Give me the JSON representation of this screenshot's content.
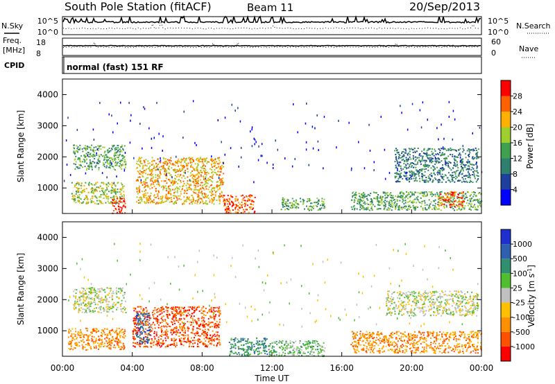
{
  "header": {
    "title": "South Pole Station (fitACF)",
    "beam": "Beam 11",
    "date": "20/Sep/2013"
  },
  "aux_panels": {
    "nsky_label": "N.Sky",
    "nsky_tick_top": "10^5",
    "nsky_tick_bottom": "10^0",
    "nsearch_label": "N.Search",
    "nsearch_tick_top": "10^5",
    "nsearch_tick_bottom": "10^0",
    "freq_label_1": "Freq.",
    "freq_label_2": "[MHz]",
    "freq_tick_top": "18",
    "freq_tick_bottom": "8",
    "nave_label": "Nave",
    "nave_tick_top": "60",
    "nave_tick_bottom": "0",
    "cpid_label": "CPID",
    "cpid_text": "normal (fast) 151 RF"
  },
  "x_axis": {
    "label": "Time UT",
    "ticks": [
      "00:00",
      "04:00",
      "08:00",
      "12:00",
      "16:00",
      "20:00",
      "00:00"
    ]
  },
  "colors": {
    "power": [
      "#0000ff",
      "#1f3f9f",
      "#2f7f6f",
      "#3fa04f",
      "#9fcf2f",
      "#ffb000",
      "#ff6000",
      "#ff0000"
    ],
    "velocity": [
      "#ff0000",
      "#ff5000",
      "#ff9000",
      "#ffc000",
      "#c0c0c0",
      "#4fbf2f",
      "#2f8f6f",
      "#2f5faf",
      "#1f2fcf"
    ]
  },
  "chart_data": [
    {
      "type": "heatmap",
      "title": "Power",
      "xlabel": "Time UT",
      "ylabel": "Slant Range [km]",
      "xlim": [
        "00:00",
        "24:00"
      ],
      "ylim": [
        180,
        4500
      ],
      "yticks": [
        1000,
        2000,
        3000,
        4000
      ],
      "colorbar": {
        "label": "Power [dB]",
        "range": [
          0,
          32
        ],
        "ticks": [
          4,
          8,
          12,
          16,
          20,
          24,
          28
        ]
      },
      "echo_regions": [
        {
          "t0": 0.6,
          "t1": 3.6,
          "r0": 1600,
          "r1": 2400,
          "level": 10
        },
        {
          "t0": 0.5,
          "t1": 3.5,
          "r0": 500,
          "r1": 1200,
          "level": 14
        },
        {
          "t0": 2.8,
          "t1": 3.6,
          "r0": 200,
          "r1": 700,
          "level": 26
        },
        {
          "t0": 4.2,
          "t1": 9.2,
          "r0": 500,
          "r1": 2000,
          "level": 18
        },
        {
          "t0": 9.2,
          "t1": 11.0,
          "r0": 200,
          "r1": 800,
          "level": 24
        },
        {
          "t0": 12.5,
          "t1": 15.0,
          "r0": 300,
          "r1": 700,
          "level": 12
        },
        {
          "t0": 16.5,
          "t1": 24.0,
          "r0": 300,
          "r1": 900,
          "level": 12
        },
        {
          "t0": 19.0,
          "t1": 23.8,
          "r0": 1200,
          "r1": 2300,
          "level": 8
        },
        {
          "t0": 21.5,
          "t1": 23.0,
          "r0": 400,
          "r1": 900,
          "level": 22
        }
      ]
    },
    {
      "type": "heatmap",
      "title": "Velocity",
      "xlabel": "Time UT",
      "ylabel": "Slant Range [km]",
      "xlim": [
        "00:00",
        "24:00"
      ],
      "ylim": [
        180,
        4500
      ],
      "yticks": [
        1000,
        2000,
        3000,
        4000
      ],
      "colorbar": {
        "label": "Velocity [m s^-1]",
        "tick_labels": [
          "1000",
          "500",
          "100",
          "25",
          "-25",
          "-100",
          "-500",
          "-1000"
        ]
      },
      "echo_regions": [
        {
          "t0": 0.6,
          "t1": 3.6,
          "r0": 1600,
          "r1": 2400,
          "level": 0
        },
        {
          "t0": 0.3,
          "t1": 3.6,
          "r0": 400,
          "r1": 1100,
          "level": -300
        },
        {
          "t0": 4.0,
          "t1": 9.0,
          "r0": 500,
          "r1": 1800,
          "level": -500
        },
        {
          "t0": 4.2,
          "t1": 5.0,
          "r0": 600,
          "r1": 1600,
          "level": 500
        },
        {
          "t0": 9.5,
          "t1": 12.0,
          "r0": 200,
          "r1": 800,
          "level": 200
        },
        {
          "t0": 12.0,
          "t1": 15.0,
          "r0": 200,
          "r1": 700,
          "level": 100
        },
        {
          "t0": 16.5,
          "t1": 24.0,
          "r0": 300,
          "r1": 1000,
          "level": -300
        },
        {
          "t0": 18.5,
          "t1": 23.8,
          "r0": 1500,
          "r1": 2300,
          "level": 0
        }
      ]
    }
  ]
}
